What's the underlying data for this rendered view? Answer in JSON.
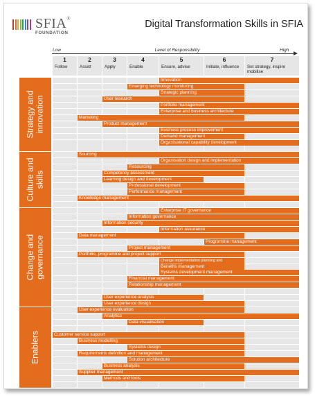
{
  "brand": {
    "logo_text": "SFIA",
    "logo_registered": "®",
    "logo_subtitle": "FOUNDATION",
    "logo_colors": [
      "#c0392b",
      "#e46c1d",
      "#f1a33b",
      "#8cb33d",
      "#2e9d6e",
      "#2a8cbf",
      "#7a4fa3",
      "#a63d83"
    ]
  },
  "title": "Digital Transformation Skills in SFIA",
  "axis": {
    "low": "Low",
    "label": "Level of Responsibility",
    "high": "High"
  },
  "levels": [
    {
      "num": "1",
      "name": "Follow"
    },
    {
      "num": "2",
      "name": "Assist"
    },
    {
      "num": "3",
      "name": "Apply"
    },
    {
      "num": "4",
      "name": "Enable"
    },
    {
      "num": "5",
      "name": "Ensure, advise"
    },
    {
      "num": "6",
      "name": "Initiate, influence"
    },
    {
      "num": "7",
      "name": "Set strategy, inspire mobilise"
    }
  ],
  "colors": {
    "accent": "#e46c1d",
    "cell": "#e7e7e7",
    "header": "#e6e6e6"
  },
  "categories": [
    {
      "label": "Strategy and innovation",
      "rows": [
        0,
        11
      ]
    },
    {
      "label": "Culture and skills",
      "rows": [
        12,
        20
      ]
    },
    {
      "label": "Change and governance",
      "rows": [
        21,
        36
      ]
    },
    {
      "label": "Enablers",
      "rows": [
        37,
        49
      ]
    }
  ],
  "skills": [
    {
      "name": "Innovation",
      "from": 5,
      "to": 7
    },
    {
      "name": "Emerging technology monitoring",
      "from": 4,
      "to": 6
    },
    {
      "name": "Strategic planning",
      "from": 5,
      "to": 6
    },
    {
      "name": "User research",
      "from": 3,
      "to": 6
    },
    {
      "name": "Portfolio management",
      "from": 5,
      "to": 7
    },
    {
      "name": "Enterprise and business architecture",
      "from": 5,
      "to": 7
    },
    {
      "name": "Marketing",
      "from": 2,
      "to": 6
    },
    {
      "name": "Product management",
      "from": 3,
      "to": 7
    },
    {
      "name": "Business process improvement",
      "from": 5,
      "to": 7
    },
    {
      "name": "Demand management",
      "from": 5,
      "to": 6
    },
    {
      "name": "Organisational capability development",
      "from": 5,
      "to": 7
    },
    {
      "name": "",
      "from": 0,
      "to": 0
    },
    {
      "name": "Sourcing",
      "from": 2,
      "to": 7
    },
    {
      "name": "Organisation design and implementation",
      "from": 5,
      "to": 7
    },
    {
      "name": "Resourcing",
      "from": 4,
      "to": 6
    },
    {
      "name": "Competency assessment",
      "from": 3,
      "to": 6
    },
    {
      "name": "Learning design and development",
      "from": 3,
      "to": 5
    },
    {
      "name": "Professional development",
      "from": 4,
      "to": 6
    },
    {
      "name": "Performance management",
      "from": 4,
      "to": 6
    },
    {
      "name": "Knowledge management",
      "from": 2,
      "to": 7
    },
    {
      "name": "",
      "from": 0,
      "to": 0
    },
    {
      "name": "Enterprise IT governance",
      "from": 5,
      "to": 7
    },
    {
      "name": "Information governance",
      "from": 4,
      "to": 7
    },
    {
      "name": "Information security",
      "from": 3,
      "to": 7
    },
    {
      "name": "Information assurance",
      "from": 5,
      "to": 7
    },
    {
      "name": "Data management",
      "from": 2,
      "to": 6
    },
    {
      "name": "Programme management",
      "from": 6,
      "to": 7
    },
    {
      "name": "Project management",
      "from": 4,
      "to": 7
    },
    {
      "name": "Portfolio, programme and project support",
      "from": 2,
      "to": 6
    },
    {
      "name": "Change implementation planning and management",
      "from": 5,
      "to": 6,
      "double": true
    },
    {
      "name": "Benefits management",
      "from": 5,
      "to": 6
    },
    {
      "name": "Systems development management",
      "from": 5,
      "to": 7
    },
    {
      "name": "Financial management",
      "from": 4,
      "to": 7
    },
    {
      "name": "Relationship management",
      "from": 4,
      "to": 7
    },
    {
      "name": "",
      "from": 0,
      "to": 0
    },
    {
      "name": "User experience analysis",
      "from": 3,
      "to": 5
    },
    {
      "name": "User experience design",
      "from": 3,
      "to": 6
    },
    {
      "name": "User experience evaluation",
      "from": 2,
      "to": 6
    },
    {
      "name": "Analytics",
      "from": 3,
      "to": 7
    },
    {
      "name": "Data visualisation",
      "from": 4,
      "to": 5
    },
    {
      "name": "",
      "from": 0,
      "to": 0
    },
    {
      "name": "Customer service support",
      "from": 1,
      "to": 6
    },
    {
      "name": "Business modelling",
      "from": 2,
      "to": 6
    },
    {
      "name": "Systems design",
      "from": 4,
      "to": 6
    },
    {
      "name": "Requirements definition and management",
      "from": 2,
      "to": 6
    },
    {
      "name": "Solution architecture",
      "from": 4,
      "to": 7
    },
    {
      "name": "Business analysis",
      "from": 3,
      "to": 6
    },
    {
      "name": "Supplier management",
      "from": 2,
      "to": 7
    },
    {
      "name": "Methods and tools",
      "from": 3,
      "to": 6
    },
    {
      "name": "",
      "from": 0,
      "to": 0
    }
  ]
}
